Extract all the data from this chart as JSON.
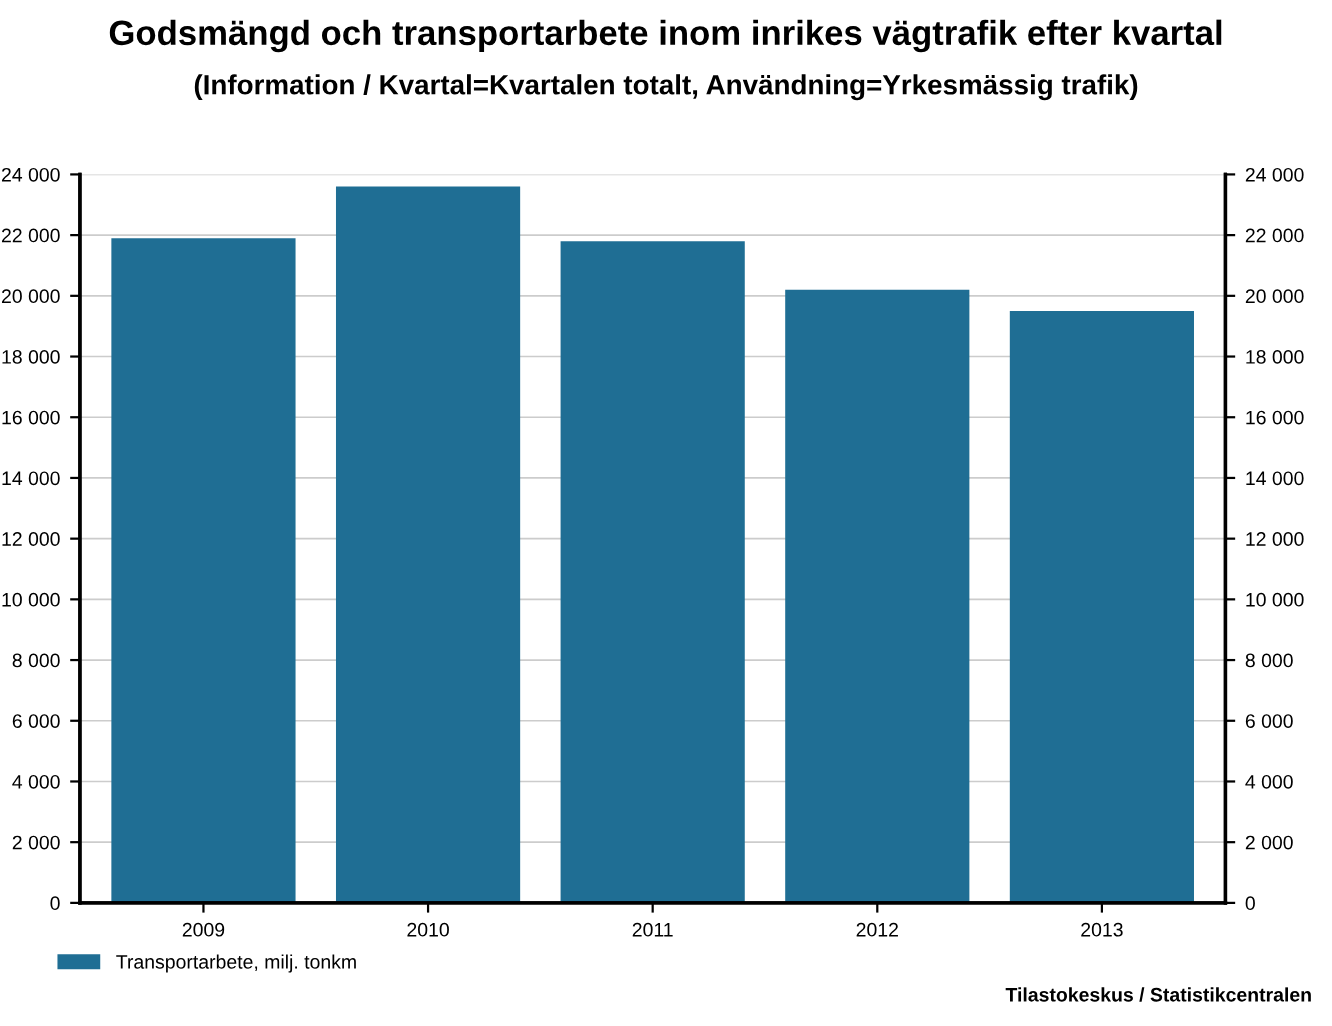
{
  "chart_data": {
    "type": "bar",
    "title": "Godsmängd och transportarbete inom inrikes vägtrafik efter kvartal",
    "subtitle": "(Information / Kvartal=Kvartalen totalt, Användning=Yrkesmässig trafik)",
    "categories": [
      "2009",
      "2010",
      "2011",
      "2012",
      "2013"
    ],
    "series": [
      {
        "name": "Transportarbete, milj. tonkm",
        "color": "#1f6e94",
        "values": [
          21900,
          23600,
          21800,
          20200,
          19500
        ]
      }
    ],
    "ylim": [
      0,
      24000
    ],
    "yticks": [
      {
        "value": 0,
        "label": "0"
      },
      {
        "value": 2000,
        "label": "2 000"
      },
      {
        "value": 4000,
        "label": "4 000"
      },
      {
        "value": 6000,
        "label": "6 000"
      },
      {
        "value": 8000,
        "label": "8 000"
      },
      {
        "value": 10000,
        "label": "10 000"
      },
      {
        "value": 12000,
        "label": "12 000"
      },
      {
        "value": 14000,
        "label": "14 000"
      },
      {
        "value": 16000,
        "label": "16 000"
      },
      {
        "value": 18000,
        "label": "18 000"
      },
      {
        "value": 20000,
        "label": "20 000"
      },
      {
        "value": 22000,
        "label": "22 000"
      },
      {
        "value": 24000,
        "label": "24 000"
      }
    ],
    "y2lim": [
      0,
      24000
    ],
    "y2ticks": [
      {
        "value": 0,
        "label": "0"
      },
      {
        "value": 2000,
        "label": "2 000"
      },
      {
        "value": 4000,
        "label": "4 000"
      },
      {
        "value": 6000,
        "label": "6 000"
      },
      {
        "value": 8000,
        "label": "8 000"
      },
      {
        "value": 10000,
        "label": "10 000"
      },
      {
        "value": 12000,
        "label": "12 000"
      },
      {
        "value": 14000,
        "label": "14 000"
      },
      {
        "value": 16000,
        "label": "16 000"
      },
      {
        "value": 18000,
        "label": "18 000"
      },
      {
        "value": 20000,
        "label": "20 000"
      },
      {
        "value": 22000,
        "label": "22 000"
      },
      {
        "value": 24000,
        "label": "24 000"
      }
    ],
    "grid": "y",
    "legend": "bottom left",
    "annotations": [
      "Tilastokeskus / Statistikcentralen"
    ]
  }
}
